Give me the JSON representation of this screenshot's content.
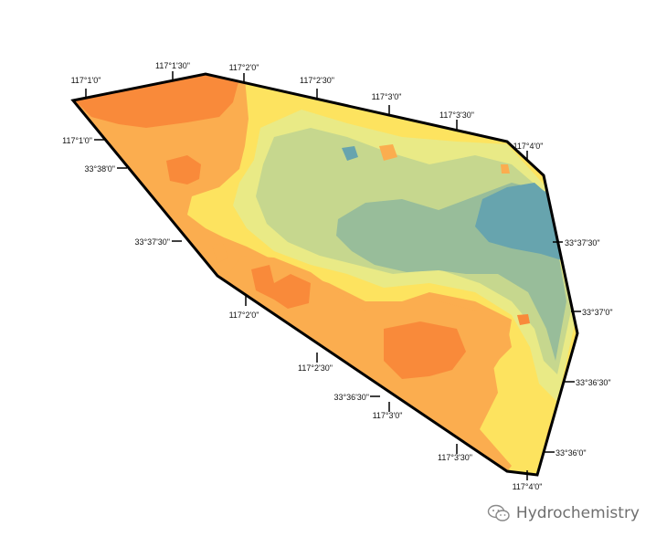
{
  "map": {
    "colors": {
      "high": "#f98a3a",
      "mid_high": "#fbad4f",
      "mid": "#fde35f",
      "mid_low": "#e9ea86",
      "low_mid": "#c6d78e",
      "low": "#98bd9a",
      "lowest": "#67a4ae",
      "outline": "#000000"
    },
    "ticks_top": [
      "117°1'0\"",
      "117°1'30\"",
      "117°2'0\"",
      "117°2'30\"",
      "117°3'0\"",
      "117°3'30\"",
      "117°4'0\""
    ],
    "ticks_left": [
      "117°1'0\"",
      "33°38'0\"",
      "33°37'30\"",
      "117°2'0\"",
      "117°2'30\"",
      "33°36'30\"",
      "117°3'0\"",
      "117°3'30\"",
      "117°4'0\""
    ],
    "ticks_right": [
      "33°37'30\"",
      "33°37'0\"",
      "33°36'30\"",
      "33°36'0\""
    ]
  },
  "watermark": {
    "icon": "wechat-icon",
    "text": "Hydrochemistry"
  }
}
